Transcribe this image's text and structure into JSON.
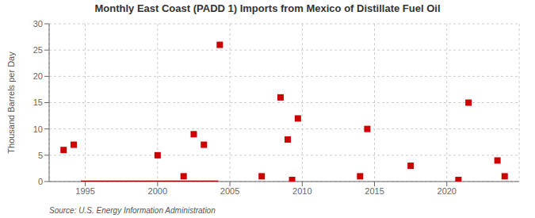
{
  "chart_data": {
    "type": "scatter",
    "title": "Monthly East Coast (PADD 1) Imports from Mexico of Distillate Fuel Oil",
    "y_label": "Thousand Barrels per Day",
    "source": "Source: U.S. Energy Information Administration",
    "xlim": [
      1992.5,
      2025.0
    ],
    "ylim": [
      0,
      30
    ],
    "xticks": [
      1995,
      2000,
      2005,
      2010,
      2015,
      2020
    ],
    "yticks": [
      0,
      5,
      10,
      15,
      20,
      25,
      30
    ],
    "grid": true,
    "series": [
      {
        "type": "line",
        "color": "#8b0000",
        "line_style": "solid",
        "x": [
          1994.7,
          2004.2
        ],
        "values": [
          0,
          0
        ]
      },
      {
        "type": "scatter",
        "color": "#cc0000",
        "marker": "square",
        "x": [
          1993.5,
          1994.2,
          2000.0,
          2001.8,
          2002.5,
          2003.2,
          2007.2,
          2008.5,
          2009.0,
          2009.7,
          2014.0,
          2014.5,
          2017.5,
          2020.8,
          2023.5,
          2024.0,
          2004.3,
          2009.3,
          2021.5
        ],
        "values": [
          6,
          7,
          5,
          1,
          9,
          7,
          1,
          16,
          8,
          12,
          1,
          10,
          3,
          0.3,
          4,
          1,
          26,
          0.3,
          15
        ]
      }
    ]
  }
}
